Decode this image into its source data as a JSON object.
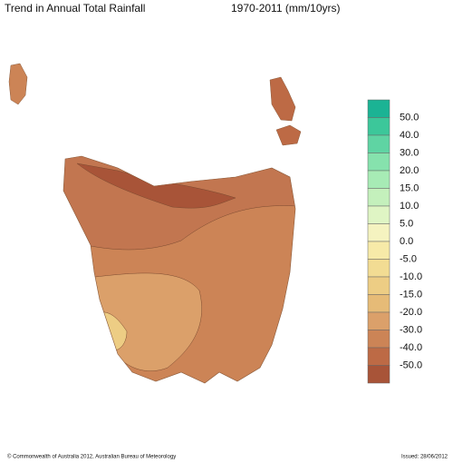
{
  "header": {
    "title": "Trend in Annual Total Rainfall",
    "period": "1970-2011 (mm/10yrs)"
  },
  "legend": {
    "labels": [
      "50.0",
      "40.0",
      "30.0",
      "20.0",
      "15.0",
      "10.0",
      "5.0",
      "0.0",
      "-5.0",
      "-10.0",
      "-15.0",
      "-20.0",
      "-30.0",
      "-40.0",
      "-50.0"
    ],
    "colors": [
      "#1bb394",
      "#3cc79a",
      "#5fd4a3",
      "#86e2ad",
      "#a7ebb5",
      "#c4f0bc",
      "#dff5c4",
      "#f5f3c0",
      "#f7eaa8",
      "#f2dc93",
      "#edcd84",
      "#e6bb77",
      "#dba06a",
      "#cc8456",
      "#bd6a45",
      "#a85438"
    ]
  },
  "footer": {
    "copyright": "© Commonwealth of Australia 2012, Australian Bureau of Meteorology",
    "issued": "Issued: 28/06/2012"
  }
}
